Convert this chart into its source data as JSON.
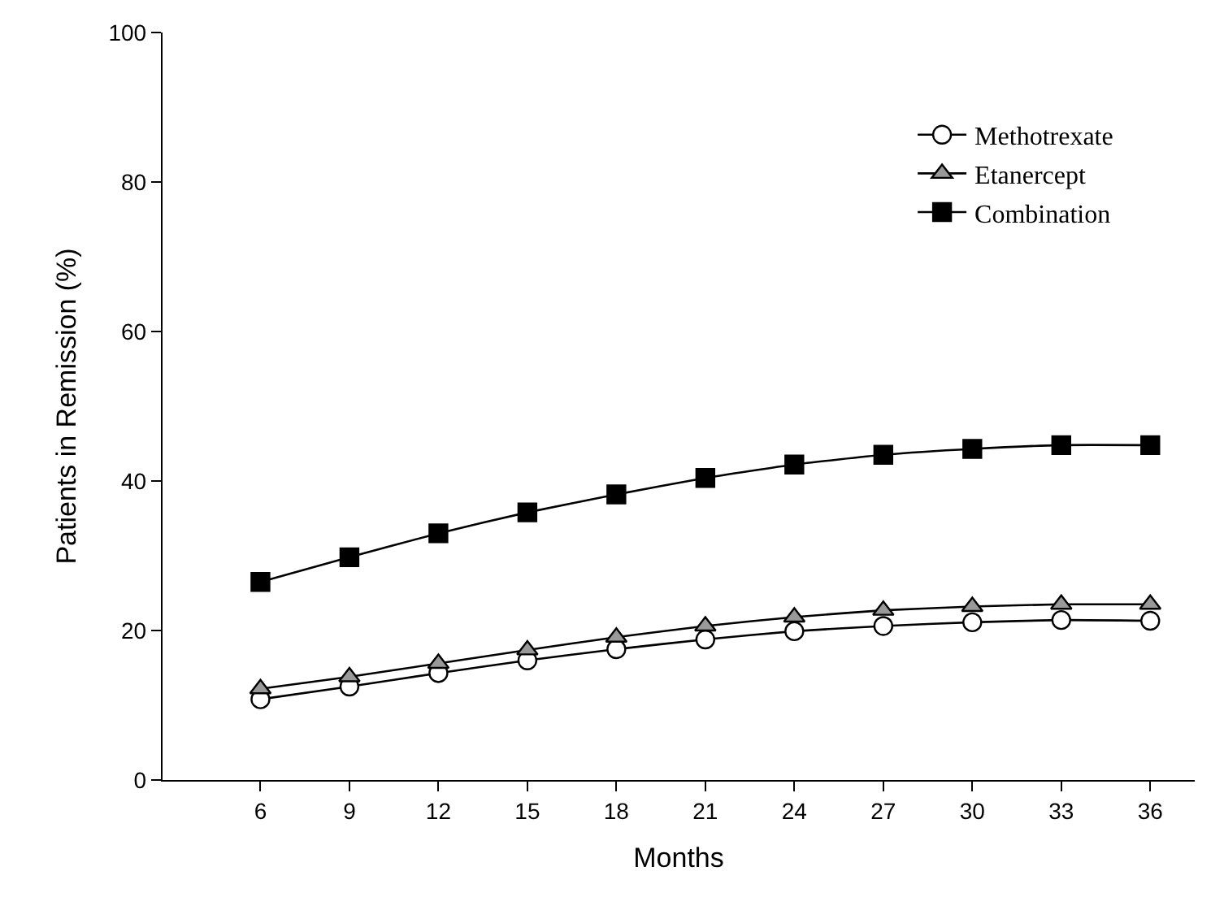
{
  "chart_data": {
    "type": "line",
    "xlabel": "Months",
    "ylabel": "Patients in Remission (%)",
    "x": [
      6,
      9,
      12,
      15,
      18,
      21,
      24,
      27,
      30,
      33,
      36
    ],
    "series": [
      {
        "name": "Methotrexate",
        "color": "#ffffff",
        "marker": "circle",
        "values": [
          10.8,
          12.5,
          14.3,
          16.0,
          17.5,
          18.8,
          19.9,
          20.6,
          21.1,
          21.4,
          21.3
        ]
      },
      {
        "name": "Etanercept",
        "color": "#999999",
        "marker": "triangle",
        "values": [
          12.2,
          13.8,
          15.6,
          17.4,
          19.1,
          20.6,
          21.8,
          22.7,
          23.2,
          23.5,
          23.5
        ]
      },
      {
        "name": "Combination",
        "color": "#000000",
        "marker": "square",
        "values": [
          26.5,
          29.8,
          33.0,
          35.8,
          38.2,
          40.4,
          42.2,
          43.5,
          44.3,
          44.8,
          44.8
        ]
      }
    ],
    "xlim": [
      2.7,
      37.5
    ],
    "xticks": [
      6,
      9,
      12,
      15,
      18,
      21,
      24,
      27,
      30,
      33,
      36
    ],
    "ylim": [
      0,
      100
    ],
    "yticks": [
      0,
      20,
      40,
      60,
      80,
      100
    ],
    "legend": "top right",
    "line_style": "solid"
  }
}
